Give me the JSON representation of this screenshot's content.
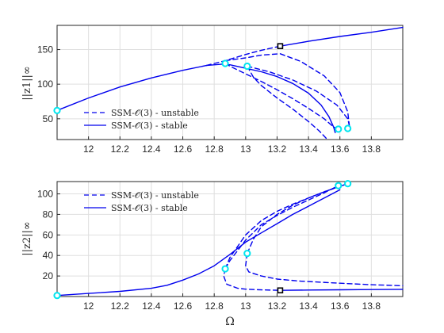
{
  "figure": {
    "xlabel": "Ω"
  },
  "chart_data": [
    {
      "type": "line",
      "ylabel": "||z1||∞",
      "xlim": [
        11.8,
        14.0
      ],
      "ylim": [
        20,
        185
      ],
      "xticks": [
        12,
        12.2,
        12.4,
        12.6,
        12.8,
        13,
        13.2,
        13.4,
        13.6,
        13.8
      ],
      "xtick_labels": [
        "12",
        "12.2",
        "12.4",
        "12.6",
        "12.8",
        "13",
        "13.2",
        "13.4",
        "13.6",
        "13.8"
      ],
      "yticks": [
        50,
        100,
        150
      ],
      "ytick_labels": [
        "50",
        "100",
        "150"
      ],
      "grid": true,
      "legend": "bottom-left",
      "legend_entries": [
        {
          "label": "SSM-𝒪(3) - unstable",
          "style": "dashed"
        },
        {
          "label": "SSM-𝒪(3) - stable",
          "style": "solid"
        }
      ],
      "color": "#0000ee",
      "series": [
        {
          "style": "solid",
          "x": [
            11.8,
            12.0,
            12.2,
            12.4,
            12.6,
            12.75,
            12.85,
            12.9,
            13.0,
            13.1,
            13.2,
            13.3,
            13.4,
            13.48,
            13.53,
            13.56,
            13.57
          ],
          "y": [
            62,
            80,
            96,
            109,
            120,
            127,
            129,
            128,
            123,
            118,
            111,
            101,
            87,
            70,
            53,
            38,
            30
          ]
        },
        {
          "style": "solid",
          "x": [
            13.22,
            13.4,
            13.6,
            13.8,
            14.0
          ],
          "y": [
            155,
            162,
            169,
            175,
            182
          ]
        },
        {
          "style": "dashed",
          "x": [
            12.75,
            12.87,
            13.0,
            13.1,
            13.22
          ],
          "y": [
            127,
            134,
            143,
            149,
            155
          ]
        },
        {
          "style": "dashed",
          "x": [
            12.87,
            12.9,
            13.0,
            13.1,
            13.2,
            13.3,
            13.4,
            13.5,
            13.55,
            13.59
          ],
          "y": [
            130,
            126,
            115,
            104,
            92,
            79,
            65,
            50,
            40,
            34
          ]
        },
        {
          "style": "dashed",
          "x": [
            12.87,
            13.0,
            13.1,
            13.22,
            13.35,
            13.5,
            13.6,
            13.65,
            13.66,
            13.65
          ],
          "y": [
            134,
            138,
            142,
            144,
            133,
            112,
            88,
            60,
            40,
            35
          ]
        },
        {
          "style": "dashed",
          "x": [
            13.01,
            13.05,
            13.1,
            13.2,
            13.3,
            13.4,
            13.47,
            13.52
          ],
          "y": [
            126,
            110,
            98,
            80,
            64,
            46,
            32,
            20
          ]
        },
        {
          "style": "dashed",
          "x": [
            13.01,
            13.15,
            13.3,
            13.45,
            13.58,
            13.65,
            13.66,
            13.65
          ],
          "y": [
            126,
            118,
            106,
            90,
            70,
            50,
            40,
            35
          ]
        }
      ],
      "markers": [
        {
          "x": 11.8,
          "y": 62,
          "shape": "circle",
          "color": "#00e5ee"
        },
        {
          "x": 12.87,
          "y": 130,
          "shape": "circle",
          "color": "#00e5ee"
        },
        {
          "x": 13.01,
          "y": 126,
          "shape": "circle",
          "color": "#00e5ee"
        },
        {
          "x": 13.59,
          "y": 35,
          "shape": "circle",
          "color": "#00e5ee"
        },
        {
          "x": 13.65,
          "y": 36,
          "shape": "circle",
          "color": "#00e5ee"
        },
        {
          "x": 13.22,
          "y": 155,
          "shape": "square",
          "color": "#000000"
        }
      ]
    },
    {
      "type": "line",
      "ylabel": "||z2||∞",
      "xlim": [
        11.8,
        14.0
      ],
      "ylim": [
        0,
        112
      ],
      "xticks": [
        12,
        12.2,
        12.4,
        12.6,
        12.8,
        13,
        13.2,
        13.4,
        13.6,
        13.8
      ],
      "xtick_labels": [
        "12",
        "12.2",
        "12.4",
        "12.6",
        "12.8",
        "13",
        "13.2",
        "13.4",
        "13.6",
        "13.8"
      ],
      "yticks": [
        20,
        40,
        60,
        80,
        100
      ],
      "ytick_labels": [
        "20",
        "40",
        "60",
        "80",
        "100"
      ],
      "grid": true,
      "legend": "top-left",
      "legend_entries": [
        {
          "label": "SSM-𝒪(3) - unstable",
          "style": "dashed"
        },
        {
          "label": "SSM-𝒪(3) - stable",
          "style": "solid"
        }
      ],
      "color": "#0000ee",
      "series": [
        {
          "style": "solid",
          "x": [
            11.8,
            12.0,
            12.2,
            12.4,
            12.5,
            12.6,
            12.7,
            12.8,
            12.9,
            13.0,
            13.1,
            13.2,
            13.3,
            13.4,
            13.5,
            13.6
          ],
          "y": [
            1,
            3,
            5,
            8,
            11,
            16,
            22,
            30,
            41,
            53,
            62,
            71,
            80,
            88,
            96,
            104
          ]
        },
        {
          "style": "solid",
          "x": [
            13.22,
            13.4,
            13.6,
            13.8,
            14.0
          ],
          "y": [
            6,
            6.3,
            6.6,
            6.8,
            7
          ]
        },
        {
          "style": "dashed",
          "x": [
            12.87,
            12.9,
            13.0,
            13.1,
            13.2,
            13.3,
            13.4,
            13.5,
            13.59
          ],
          "y": [
            27,
            35,
            55,
            70,
            79,
            87,
            94,
            101,
            108
          ]
        },
        {
          "style": "dashed",
          "x": [
            12.87,
            12.9,
            13.0,
            13.1,
            13.2,
            13.3,
            13.4,
            13.5,
            13.65
          ],
          "y": [
            27,
            38,
            60,
            74,
            83,
            90,
            96,
            102,
            110
          ]
        },
        {
          "style": "dashed",
          "x": [
            12.87,
            12.86,
            12.88,
            12.95,
            13.0,
            13.1,
            13.22
          ],
          "y": [
            27,
            20,
            12,
            8,
            7.2,
            6.5,
            6
          ]
        },
        {
          "style": "dashed",
          "x": [
            13.01,
            13.0,
            13.02,
            13.1,
            13.2,
            13.35,
            13.6,
            13.8,
            14.0
          ],
          "y": [
            42,
            30,
            24,
            20,
            17,
            15,
            13,
            11.5,
            10.5
          ]
        },
        {
          "style": "dashed",
          "x": [
            13.01,
            13.05,
            13.1,
            13.2,
            13.3,
            13.4,
            13.5,
            13.65
          ],
          "y": [
            42,
            56,
            68,
            80,
            89,
            96,
            102,
            110
          ]
        }
      ],
      "markers": [
        {
          "x": 11.8,
          "y": 1,
          "shape": "circle",
          "color": "#00e5ee"
        },
        {
          "x": 12.87,
          "y": 27,
          "shape": "circle",
          "color": "#00e5ee"
        },
        {
          "x": 13.01,
          "y": 42,
          "shape": "circle",
          "color": "#00e5ee"
        },
        {
          "x": 13.59,
          "y": 108,
          "shape": "circle",
          "color": "#00e5ee"
        },
        {
          "x": 13.65,
          "y": 110,
          "shape": "circle",
          "color": "#00e5ee"
        },
        {
          "x": 13.22,
          "y": 6,
          "shape": "square",
          "color": "#000000"
        }
      ]
    }
  ]
}
